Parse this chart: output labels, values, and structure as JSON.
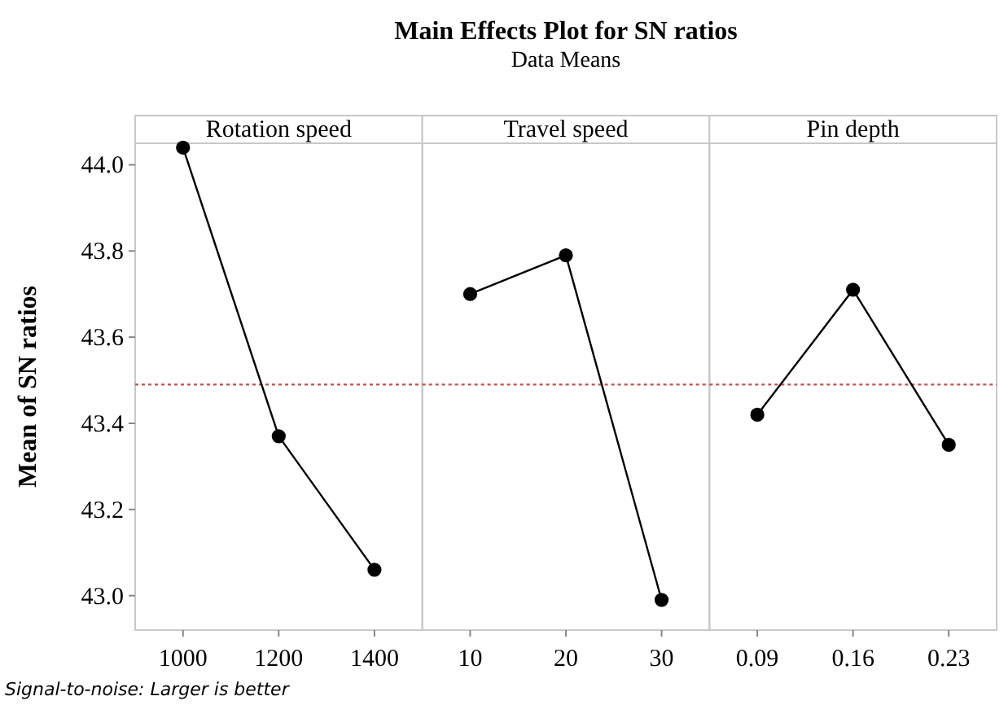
{
  "chart_data": [
    {
      "type": "line",
      "xlabel": "Rotation speed",
      "ylabel": "Mean of SN ratios",
      "categories": [
        "1000",
        "1200",
        "1400"
      ],
      "series": [
        {
          "color": "#000000",
          "values": [
            44.04,
            43.37,
            43.06
          ]
        }
      ],
      "ylim": [
        42.92,
        44.05
      ],
      "yticks": [
        {
          "value": 43.0,
          "label": "43.0"
        },
        {
          "value": 43.2,
          "label": "43.2"
        },
        {
          "value": 43.4,
          "label": "43.4"
        },
        {
          "value": 43.6,
          "label": "43.6"
        },
        {
          "value": 43.8,
          "label": "43.8"
        },
        {
          "value": 44.0,
          "label": "44.0"
        }
      ],
      "ref_lines": [
        {
          "axis": "y",
          "value": 43.49,
          "color": "#c0504d",
          "line_style": "dotted"
        }
      ],
      "marker": "circle",
      "line_style": "solid",
      "grid": false,
      "annotations": [
        "Signal-to-noise: Larger is better"
      ]
    },
    {
      "type": "line",
      "title": "Main Effects Plot for SN ratios",
      "subtitle": "Data Means",
      "xlabel": "Travel speed",
      "categories": [
        "10",
        "20",
        "30"
      ],
      "series": [
        {
          "color": "#000000",
          "values": [
            43.7,
            43.79,
            42.99
          ]
        }
      ],
      "ylim": [
        42.92,
        44.05
      ],
      "tick_labels": "x",
      "ref_lines": [
        {
          "axis": "y",
          "value": 43.49,
          "color": "#c0504d",
          "line_style": "dotted"
        }
      ],
      "marker": "circle",
      "line_style": "solid",
      "grid": false
    },
    {
      "type": "line",
      "xlabel": "Pin depth",
      "categories": [
        "0.09",
        "0.16",
        "0.23"
      ],
      "series": [
        {
          "color": "#000000",
          "values": [
            43.42,
            43.71,
            43.35
          ]
        }
      ],
      "ylim": [
        42.92,
        44.05
      ],
      "tick_labels": "x",
      "ref_lines": [
        {
          "axis": "y",
          "value": 43.49,
          "color": "#c0504d",
          "line_style": "dotted"
        }
      ],
      "marker": "circle",
      "line_style": "solid",
      "grid": false
    }
  ]
}
